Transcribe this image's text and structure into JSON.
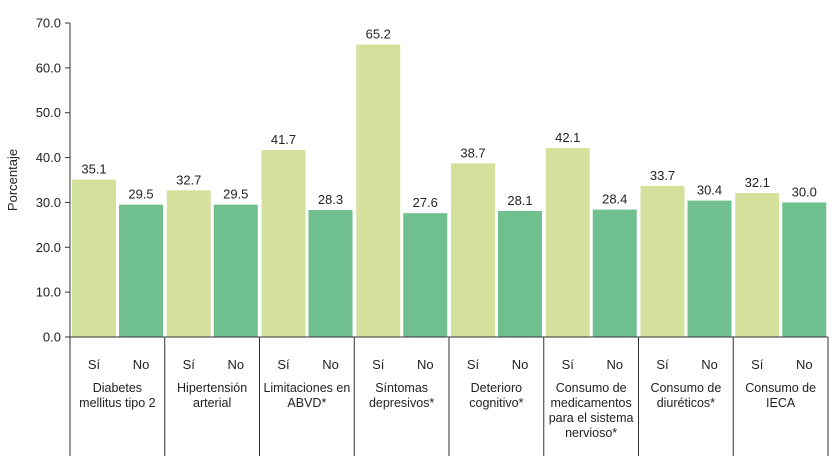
{
  "chart_data": {
    "type": "bar",
    "ylabel": "Porcentaje",
    "ylim": [
      0,
      70
    ],
    "yticks": [
      "0.0",
      "10.0",
      "20.0",
      "30.0",
      "40.0",
      "50.0",
      "60.0",
      "70.0"
    ],
    "grid": false,
    "legend": "none",
    "sub_labels": [
      "Sí",
      "No"
    ],
    "colors": {
      "si": "#d4e19d",
      "no": "#6fbf8f",
      "axis": "#333333"
    },
    "groups": [
      {
        "label_lines": [
          "Diabetes",
          "mellitus tipo 2"
        ],
        "values": [
          35.1,
          29.5
        ]
      },
      {
        "label_lines": [
          "Hipertensión",
          "arterial"
        ],
        "values": [
          32.7,
          29.5
        ]
      },
      {
        "label_lines": [
          "Limitaciones en",
          "ABVD*"
        ],
        "values": [
          41.7,
          28.3
        ]
      },
      {
        "label_lines": [
          "Síntomas",
          "depresivos*"
        ],
        "values": [
          65.2,
          27.6
        ]
      },
      {
        "label_lines": [
          "Deterioro",
          "cognitivo*"
        ],
        "values": [
          38.7,
          28.1
        ]
      },
      {
        "label_lines": [
          "Consumo de",
          "medicamentos",
          "para el sistema",
          "nervioso*"
        ],
        "values": [
          42.1,
          28.4
        ]
      },
      {
        "label_lines": [
          "Consumo de",
          "diuréticos*"
        ],
        "values": [
          33.7,
          30.4
        ]
      },
      {
        "label_lines": [
          "Consumo de",
          "IECA"
        ],
        "values": [
          32.1,
          30.0
        ]
      }
    ]
  }
}
